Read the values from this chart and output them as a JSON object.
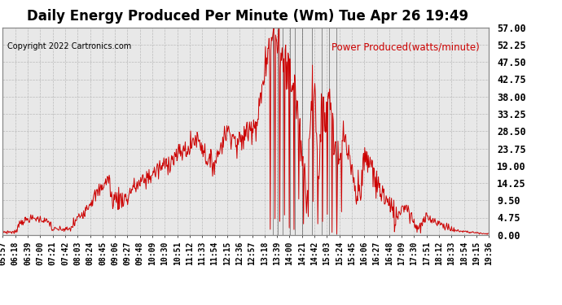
{
  "title": "Daily Energy Produced Per Minute (Wm) Tue Apr 26 19:49",
  "copyright": "Copyright 2022 Cartronics.com",
  "legend_label": "Power Produced(watts/minute)",
  "legend_color": "#cc0000",
  "line_color": "#cc0000",
  "spike_color": "#444444",
  "background_color": "#ffffff",
  "plot_bg_color": "#e8e8e8",
  "grid_color": "#bbbbbb",
  "yticks": [
    0.0,
    4.75,
    9.5,
    14.25,
    19.0,
    23.75,
    28.5,
    33.25,
    38.0,
    42.75,
    47.5,
    52.25,
    57.0
  ],
  "ylim": [
    0.0,
    57.0
  ],
  "xtick_labels": [
    "05:57",
    "06:18",
    "06:39",
    "07:00",
    "07:21",
    "07:42",
    "08:03",
    "08:24",
    "08:45",
    "09:06",
    "09:27",
    "09:48",
    "10:09",
    "10:30",
    "10:51",
    "11:12",
    "11:33",
    "11:54",
    "12:15",
    "12:36",
    "12:57",
    "13:18",
    "13:39",
    "14:00",
    "14:21",
    "14:42",
    "15:03",
    "15:24",
    "15:45",
    "16:06",
    "16:27",
    "16:48",
    "17:09",
    "17:30",
    "17:51",
    "18:12",
    "18:33",
    "18:54",
    "19:15",
    "19:36"
  ],
  "title_fontsize": 12,
  "copyright_fontsize": 7,
  "legend_fontsize": 8.5,
  "tick_fontsize": 7,
  "ytick_fontsize": 8.5
}
